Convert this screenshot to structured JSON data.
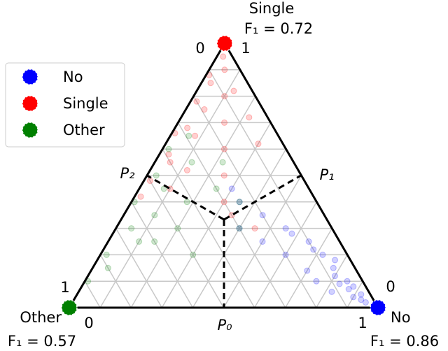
{
  "chart_data": {
    "type": "ternary",
    "corners": [
      {
        "name": "No",
        "f1": "F₁ = 0.86",
        "color": "#0000ff",
        "ticks": [
          0,
          1
        ]
      },
      {
        "name": "Single",
        "f1": "F₁ = 0.72",
        "color": "#ff0000",
        "ticks": [
          0,
          1
        ]
      },
      {
        "name": "Other",
        "f1": "F₁ = 0.57",
        "color": "#008000",
        "ticks": [
          1,
          0
        ]
      }
    ],
    "regions": [
      "P₀",
      "P₁",
      "P₂"
    ],
    "series": [
      {
        "name": "No",
        "color": "#0000ff",
        "no": [
          0.95,
          0.92,
          0.9,
          0.88,
          0.85,
          0.82,
          0.8,
          0.78,
          0.75,
          0.72,
          0.7,
          0.65,
          0.6,
          0.55,
          0.5,
          0.45,
          0.4,
          0.35,
          0.3,
          0.93,
          0.87,
          0.83,
          0.77,
          0.68,
          0.58
        ],
        "single": [
          0.02,
          0.05,
          0.04,
          0.08,
          0.1,
          0.06,
          0.12,
          0.15,
          0.1,
          0.2,
          0.14,
          0.25,
          0.2,
          0.3,
          0.25,
          0.35,
          0.3,
          0.4,
          0.45,
          0.03,
          0.07,
          0.09,
          0.18,
          0.22,
          0.28
        ]
      },
      {
        "name": "Single",
        "color": "#ff0000",
        "no": [
          0.02,
          0.05,
          0.03,
          0.1,
          0.06,
          0.15,
          0.08,
          0.2,
          0.05,
          0.25,
          0.1,
          0.3,
          0.01,
          0.02,
          0.04,
          0.03,
          0.02,
          0.22,
          0.3,
          0.12,
          0.12,
          0.35,
          0.45,
          0.02,
          0.01
        ],
        "single": [
          0.95,
          0.9,
          0.85,
          0.8,
          0.75,
          0.7,
          0.65,
          0.6,
          0.55,
          0.5,
          0.45,
          0.4,
          0.88,
          0.78,
          0.68,
          0.58,
          0.48,
          0.72,
          0.62,
          0.52,
          0.82,
          0.35,
          0.3,
          0.42,
          0.66
        ]
      },
      {
        "name": "Other",
        "color": "#008000",
        "no": [
          0.01,
          0.02,
          0.05,
          0.1,
          0.15,
          0.2,
          0.3,
          0.03,
          0.08,
          0.02,
          0.25,
          0.12,
          0.4,
          0.05,
          0.18,
          0.01,
          0.35,
          0.06,
          0.22,
          0.1
        ],
        "single": [
          0.1,
          0.2,
          0.3,
          0.35,
          0.25,
          0.3,
          0.2,
          0.5,
          0.45,
          0.6,
          0.45,
          0.55,
          0.3,
          0.15,
          0.4,
          0.4,
          0.4,
          0.65,
          0.55,
          0.25
        ]
      }
    ]
  }
}
